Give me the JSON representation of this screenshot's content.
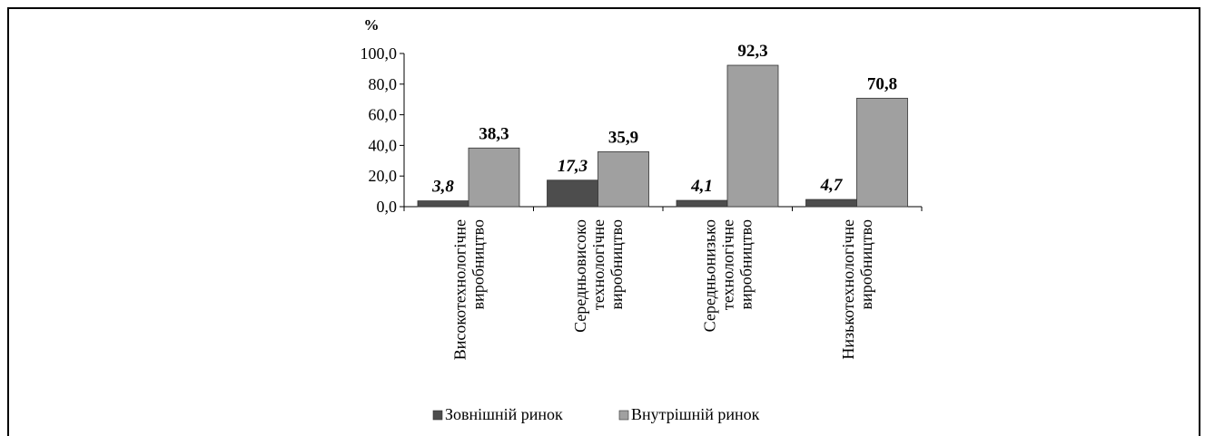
{
  "chart_data": {
    "type": "bar",
    "title": "",
    "xlabel": "",
    "ylabel": "%",
    "ylim": [
      0,
      100
    ],
    "yticks": [
      "0,0",
      "20,0",
      "40,0",
      "60,0",
      "80,0",
      "100,0"
    ],
    "ytick_values": [
      0,
      20,
      40,
      60,
      80,
      100
    ],
    "grid": false,
    "legend_position": "bottom",
    "categories": [
      [
        "Високотехнологічне",
        "виробництво"
      ],
      [
        "Середньовисоко",
        "технологічне",
        "виробництво"
      ],
      [
        "Середньонизько",
        "технологічне",
        "виробництво"
      ],
      [
        "Низькотехнологічне",
        "виробництво"
      ]
    ],
    "series": [
      {
        "name": "Зовнішній ринок",
        "color": "#4d4d4d",
        "values": [
          3.8,
          17.3,
          4.1,
          4.7
        ],
        "labels": [
          "3,8",
          "17,3",
          "4,1",
          "4,7"
        ]
      },
      {
        "name": "Внутрішній ринок",
        "color": "#a0a0a0",
        "values": [
          38.3,
          35.9,
          92.3,
          70.8
        ],
        "labels": [
          "38,3",
          "35,9",
          "92,3",
          "70,8"
        ]
      }
    ]
  }
}
